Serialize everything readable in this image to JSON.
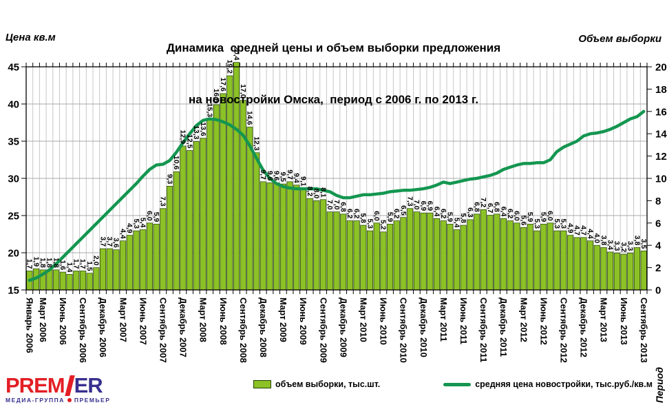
{
  "title": {
    "line1": "Динамика  средней цены и объем выборки предложения",
    "line2": "на новостройки Омска,  период с 2006 г. по 2013 г."
  },
  "axis_labels": {
    "left": "Цена кв.м",
    "right": "Объем выборки",
    "x": "Период"
  },
  "legend": {
    "items": [
      {
        "label": "объем выборки, тыс.шт.",
        "marker": "bar-swatch"
      },
      {
        "label": "средняя цена новостройки, тыс.руб./кв.м",
        "marker": "line-swatch"
      }
    ]
  },
  "logo": {
    "word_part1": "PREM",
    "word_part2": "ER",
    "subtitle_left": "МЕДИА-ГРУППА",
    "subtitle_right": "ПРЕМЬЕР"
  },
  "colors": {
    "bar_fill": "#8CC226",
    "bar_stroke": "#204000",
    "line": "#149650",
    "grid_v": "#C6C6C6",
    "grid_h": "#A8A8A8",
    "frame": "#000000",
    "logo_red": "#E31E24",
    "logo_purple": "#38308F"
  },
  "chart_data": {
    "type": "bar",
    "combo": "bar+line",
    "n_months": 93,
    "start_month": "Январь 2006",
    "end_month": "Сентябрь 2013",
    "left_axis": {
      "label": "Цена кв.м",
      "min": 15,
      "max": 45,
      "step": 5
    },
    "right_axis": {
      "label": "Объем выборки",
      "min": 0,
      "max": 20,
      "step": 2
    },
    "grid": "both",
    "legend_position": "bottom",
    "x_tick_month_indices": [
      1,
      3,
      6,
      9,
      12,
      15,
      18,
      21,
      24,
      27,
      30,
      33,
      36,
      39,
      42,
      45,
      48,
      51,
      54,
      57,
      60,
      63,
      66,
      69,
      72,
      75,
      78,
      81,
      84,
      87,
      90,
      93
    ],
    "x_tick_labels": [
      "Январь 2006",
      "Март 2006",
      "Июнь 2006",
      "Сентябрь 2006",
      "Декабрь 2006",
      "Март 2007",
      "Июнь 2007",
      "Сентябрь 2007",
      "Декабрь 2007",
      "Март 2008",
      "Июнь 2008",
      "Сентябрь 2008",
      "Декабрь 2008",
      "Март 2009",
      "Июнь 2009",
      "Сентябрь 2009",
      "Декабрь 2009",
      "Март 2010",
      "Июнь 2010",
      "Сентябрь 2010",
      "Декабрь 2010",
      "Март 2011",
      "Июнь 2011",
      "Сентябрь 2011",
      "Декабрь 2011",
      "Март 2012",
      "Июнь 2012",
      "Сентябрь 2012",
      "Декабрь 2012",
      "Март 2013",
      "Июнь 2013",
      "Сентябрь 2013"
    ],
    "series": [
      {
        "name": "объем выборки, тыс.шт.",
        "type": "bar",
        "axis": "right",
        "values": [
          1.7,
          1.9,
          1.8,
          1.8,
          1.8,
          1.6,
          1.4,
          1.7,
          1.7,
          1.5,
          2.0,
          3.7,
          3.7,
          3.6,
          4.4,
          4.9,
          5.3,
          5.4,
          6.0,
          5.9,
          7.3,
          9.3,
          10.6,
          12.9,
          12.5,
          13.3,
          13.6,
          15.3,
          16.6,
          17.6,
          19.2,
          20.4,
          17.0,
          14.6,
          12.3,
          9.7,
          9.6,
          9.6,
          9.5,
          9.7,
          9.4,
          9.1,
          8.2,
          8.0,
          8.1,
          7.0,
          7.0,
          6.8,
          6.2,
          6.2,
          5.8,
          5.3,
          6.0,
          5.2,
          5.9,
          6.2,
          6.5,
          7.3,
          7.0,
          6.9,
          6.9,
          6.4,
          6.2,
          5.9,
          5.4,
          5.8,
          6.3,
          6.8,
          7.2,
          6.7,
          6.8,
          6.4,
          6.2,
          6.0,
          5.6,
          5.9,
          5.3,
          5.9,
          6.0,
          5.3,
          5.3,
          4.9,
          4.7,
          4.7,
          4.4,
          4.0,
          3.8,
          3.4,
          3.3,
          3.2,
          3.3,
          3.8,
          3.5
        ]
      },
      {
        "name": "средняя цена новостройки, тыс.руб./кв.м",
        "type": "line",
        "axis": "left",
        "values": [
          16.3,
          16.6,
          17.1,
          17.7,
          18.5,
          19.4,
          20.3,
          21.2,
          22.1,
          23.0,
          23.9,
          24.8,
          25.7,
          26.6,
          27.5,
          28.4,
          29.3,
          30.3,
          31.2,
          31.8,
          31.9,
          32.4,
          33.5,
          34.8,
          36.0,
          37.1,
          37.8,
          38.0,
          37.9,
          37.6,
          37.2,
          36.6,
          35.8,
          34.4,
          32.7,
          31.1,
          30.0,
          29.3,
          28.9,
          28.7,
          28.6,
          28.6,
          28.6,
          28.6,
          28.4,
          28.2,
          27.7,
          27.4,
          27.4,
          27.6,
          27.8,
          27.8,
          27.9,
          28.0,
          28.2,
          28.3,
          28.4,
          28.4,
          28.5,
          28.6,
          28.8,
          29.1,
          29.5,
          29.3,
          29.5,
          29.7,
          29.9,
          30.0,
          30.2,
          30.4,
          30.7,
          31.2,
          31.5,
          31.8,
          32.0,
          32.0,
          32.1,
          32.1,
          32.5,
          33.6,
          34.2,
          34.6,
          35.0,
          35.7,
          36.0,
          36.1,
          36.3,
          36.6,
          37.0,
          37.5,
          38.0,
          38.3,
          39.0
        ]
      }
    ]
  }
}
